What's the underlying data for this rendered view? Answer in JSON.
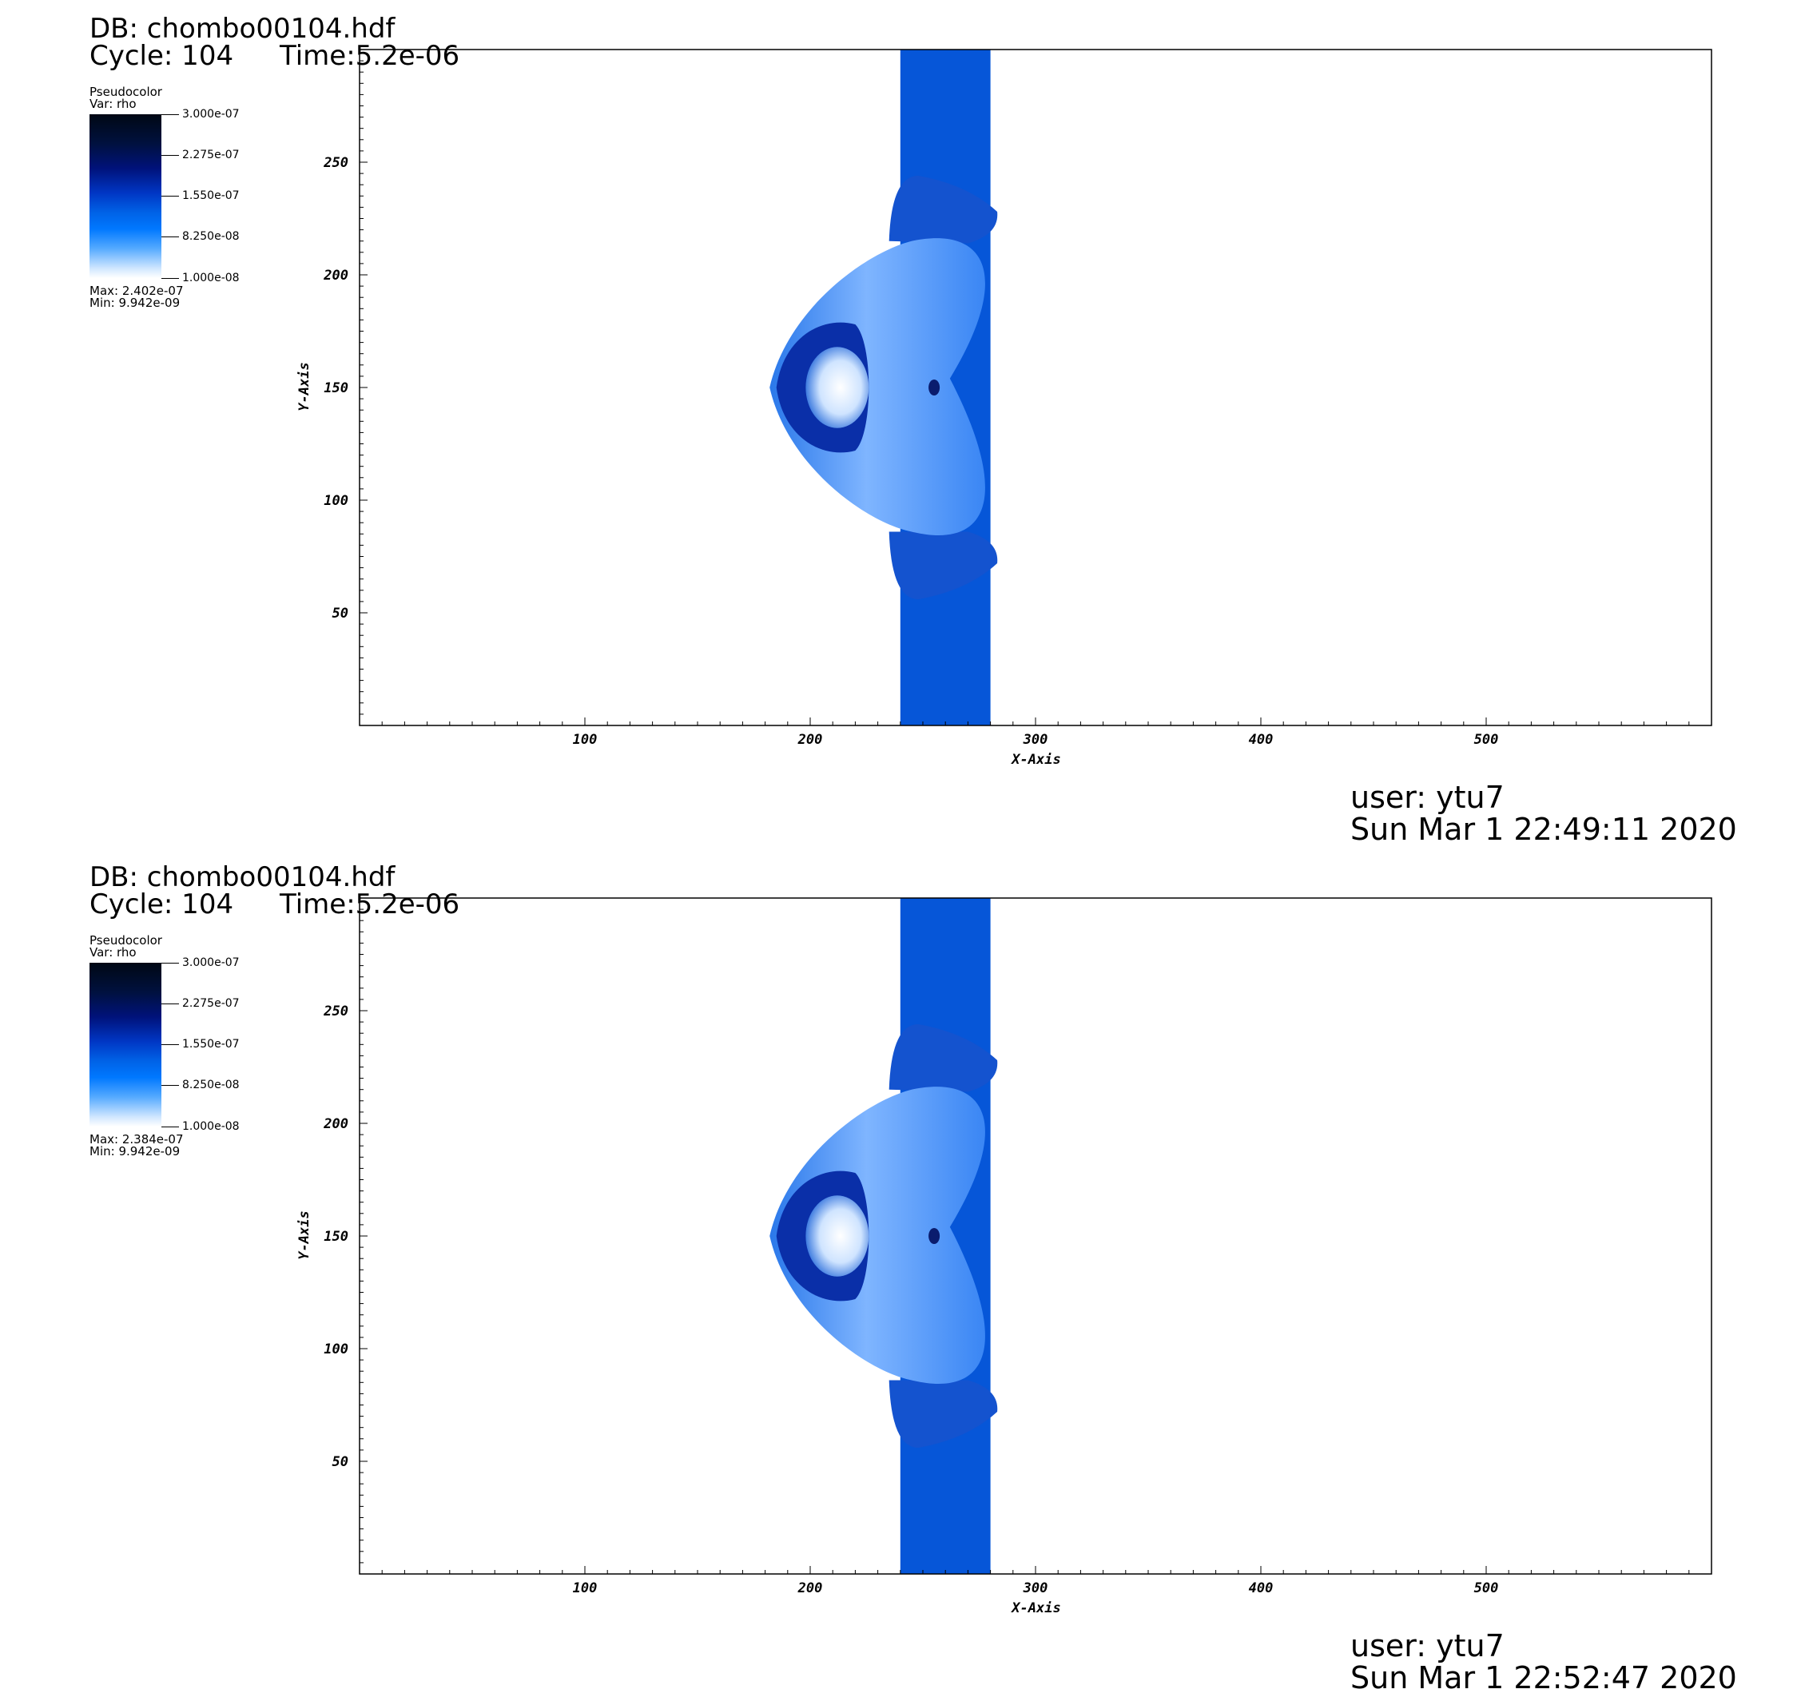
{
  "chart_data": [
    {
      "type": "heatmap",
      "header": {
        "db": "DB: chombo00104.hdf",
        "cycle": "Cycle: 104",
        "time": "Time:5.2e-06"
      },
      "legend": {
        "plot_type": "Pseudocolor",
        "variable": "Var: rho",
        "ticks": [
          "3.000e-07",
          "2.275e-07",
          "1.550e-07",
          "8.250e-08",
          "1.000e-08"
        ],
        "max": "Max: 2.402e-07",
        "min": "Min: 9.942e-09"
      },
      "xlabel": "X-Axis",
      "ylabel": "Y-Axis",
      "xlim": [
        0,
        600
      ],
      "ylim": [
        0,
        300
      ],
      "xticks": [
        100,
        200,
        300,
        400,
        500
      ],
      "yticks": [
        50,
        100,
        150,
        200,
        250
      ],
      "colormap": [
        "#ffffff",
        "#0078ff",
        "#00127a",
        "#000814"
      ],
      "footer": {
        "user": "user: ytu7",
        "timestamp": "Sun Mar  1 22:49:11 2020"
      }
    },
    {
      "type": "heatmap",
      "header": {
        "db": "DB: chombo00104.hdf",
        "cycle": "Cycle: 104",
        "time": "Time:5.2e-06"
      },
      "legend": {
        "plot_type": "Pseudocolor",
        "variable": "Var: rho",
        "ticks": [
          "3.000e-07",
          "2.275e-07",
          "1.550e-07",
          "8.250e-08",
          "1.000e-08"
        ],
        "max": "Max: 2.384e-07",
        "min": "Min: 9.942e-09"
      },
      "xlabel": "X-Axis",
      "ylabel": "Y-Axis",
      "xlim": [
        0,
        600
      ],
      "ylim": [
        0,
        300
      ],
      "xticks": [
        100,
        200,
        300,
        400,
        500
      ],
      "yticks": [
        50,
        100,
        150,
        200,
        250
      ],
      "colormap": [
        "#ffffff",
        "#0078ff",
        "#00127a",
        "#000814"
      ],
      "footer": {
        "user": "user: ytu7",
        "timestamp": "Sun Mar  1 22:52:47 2020"
      }
    }
  ]
}
